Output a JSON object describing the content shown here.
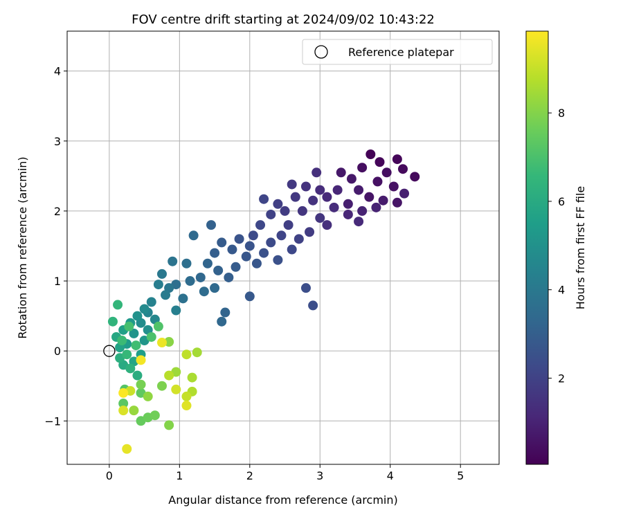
{
  "chart_data": {
    "type": "scatter",
    "title": "FOV centre drift starting at 2024/09/02 10:43:22",
    "xlabel": "Angular distance from reference (arcmin)",
    "ylabel": "Rotation from reference (arcmin)",
    "xlim": [
      -0.6,
      5.55
    ],
    "ylim": [
      -1.62,
      4.57
    ],
    "xticks": [
      0,
      1,
      2,
      3,
      4,
      5
    ],
    "yticks": [
      -1,
      0,
      1,
      2,
      3,
      4
    ],
    "xtick_labels": [
      "0",
      "1",
      "2",
      "3",
      "4",
      "5"
    ],
    "ytick_labels": [
      "−1",
      "0",
      "1",
      "2",
      "3",
      "4"
    ],
    "grid": true,
    "legend": {
      "position": "top-right",
      "entries": [
        "Reference platepar"
      ]
    },
    "reference_point": {
      "name": "Reference platepar",
      "x": 0,
      "y": 0
    },
    "colorbar": {
      "label": "Hours from first FF file",
      "colormap": "viridis",
      "range": [
        0.05,
        9.85
      ],
      "ticks": [
        2,
        4,
        6,
        8
      ],
      "tick_labels": [
        "2",
        "4",
        "6",
        "8"
      ],
      "colors": [
        "#440154",
        "#482878",
        "#3e4989",
        "#31688e",
        "#26828e",
        "#1f9e89",
        "#35b779",
        "#6ece58",
        "#b5de2b",
        "#fde725"
      ]
    },
    "points": [
      {
        "x": 3.72,
        "y": 2.81,
        "t": 0.1
      },
      {
        "x": 3.85,
        "y": 2.7,
        "t": 0.2
      },
      {
        "x": 4.1,
        "y": 2.74,
        "t": 0.2
      },
      {
        "x": 4.35,
        "y": 2.49,
        "t": 0.3
      },
      {
        "x": 4.18,
        "y": 2.6,
        "t": 0.3
      },
      {
        "x": 3.95,
        "y": 2.55,
        "t": 0.4
      },
      {
        "x": 3.6,
        "y": 2.62,
        "t": 0.4
      },
      {
        "x": 3.82,
        "y": 2.42,
        "t": 0.5
      },
      {
        "x": 4.05,
        "y": 2.35,
        "t": 0.5
      },
      {
        "x": 3.7,
        "y": 2.2,
        "t": 0.6
      },
      {
        "x": 4.1,
        "y": 2.12,
        "t": 0.6
      },
      {
        "x": 3.45,
        "y": 2.46,
        "t": 0.7
      },
      {
        "x": 3.3,
        "y": 2.55,
        "t": 0.7
      },
      {
        "x": 3.55,
        "y": 2.3,
        "t": 0.8
      },
      {
        "x": 3.9,
        "y": 2.15,
        "t": 0.8
      },
      {
        "x": 4.2,
        "y": 2.25,
        "t": 0.9
      },
      {
        "x": 3.4,
        "y": 2.1,
        "t": 0.9
      },
      {
        "x": 3.6,
        "y": 2.0,
        "t": 1.0
      },
      {
        "x": 3.8,
        "y": 2.05,
        "t": 1.0
      },
      {
        "x": 3.25,
        "y": 2.3,
        "t": 1.1
      },
      {
        "x": 3.4,
        "y": 1.95,
        "t": 1.1
      },
      {
        "x": 3.1,
        "y": 2.2,
        "t": 1.2
      },
      {
        "x": 3.55,
        "y": 1.85,
        "t": 1.2
      },
      {
        "x": 3.2,
        "y": 2.05,
        "t": 1.3
      },
      {
        "x": 3.0,
        "y": 2.3,
        "t": 1.3
      },
      {
        "x": 3.1,
        "y": 1.8,
        "t": 1.4
      },
      {
        "x": 2.95,
        "y": 2.55,
        "t": 1.4
      },
      {
        "x": 2.9,
        "y": 2.15,
        "t": 1.5
      },
      {
        "x": 2.8,
        "y": 2.35,
        "t": 1.5
      },
      {
        "x": 2.75,
        "y": 2.0,
        "t": 1.6
      },
      {
        "x": 3.0,
        "y": 1.9,
        "t": 1.6
      },
      {
        "x": 2.65,
        "y": 2.2,
        "t": 1.7
      },
      {
        "x": 2.6,
        "y": 2.38,
        "t": 1.7
      },
      {
        "x": 2.5,
        "y": 2.0,
        "t": 1.8
      },
      {
        "x": 2.85,
        "y": 1.7,
        "t": 1.8
      },
      {
        "x": 2.4,
        "y": 2.1,
        "t": 1.9
      },
      {
        "x": 2.55,
        "y": 1.8,
        "t": 1.9
      },
      {
        "x": 2.3,
        "y": 1.95,
        "t": 2.0
      },
      {
        "x": 2.7,
        "y": 1.6,
        "t": 2.0
      },
      {
        "x": 2.2,
        "y": 2.17,
        "t": 2.1
      },
      {
        "x": 2.45,
        "y": 1.65,
        "t": 2.1
      },
      {
        "x": 2.15,
        "y": 1.8,
        "t": 2.2
      },
      {
        "x": 2.6,
        "y": 1.45,
        "t": 2.2
      },
      {
        "x": 2.3,
        "y": 1.55,
        "t": 2.3
      },
      {
        "x": 2.05,
        "y": 1.65,
        "t": 2.3
      },
      {
        "x": 2.9,
        "y": 0.65,
        "t": 2.4
      },
      {
        "x": 2.8,
        "y": 0.9,
        "t": 2.4
      },
      {
        "x": 2.4,
        "y": 1.3,
        "t": 2.5
      },
      {
        "x": 2.2,
        "y": 1.4,
        "t": 2.5
      },
      {
        "x": 2.0,
        "y": 1.5,
        "t": 2.6
      },
      {
        "x": 1.85,
        "y": 1.6,
        "t": 2.6
      },
      {
        "x": 2.1,
        "y": 1.25,
        "t": 2.7
      },
      {
        "x": 1.95,
        "y": 1.35,
        "t": 2.7
      },
      {
        "x": 1.75,
        "y": 1.45,
        "t": 2.8
      },
      {
        "x": 2.0,
        "y": 0.78,
        "t": 2.8
      },
      {
        "x": 1.8,
        "y": 1.2,
        "t": 2.9
      },
      {
        "x": 1.6,
        "y": 1.55,
        "t": 2.9
      },
      {
        "x": 1.7,
        "y": 1.05,
        "t": 3.0
      },
      {
        "x": 1.5,
        "y": 1.4,
        "t": 3.0
      },
      {
        "x": 1.45,
        "y": 1.8,
        "t": 3.1
      },
      {
        "x": 1.55,
        "y": 1.15,
        "t": 3.1
      },
      {
        "x": 1.4,
        "y": 1.25,
        "t": 3.2
      },
      {
        "x": 1.65,
        "y": 0.55,
        "t": 3.2
      },
      {
        "x": 1.6,
        "y": 0.42,
        "t": 3.3
      },
      {
        "x": 1.3,
        "y": 1.05,
        "t": 3.3
      },
      {
        "x": 1.5,
        "y": 0.9,
        "t": 3.4
      },
      {
        "x": 1.2,
        "y": 1.65,
        "t": 3.4
      },
      {
        "x": 1.15,
        "y": 1.0,
        "t": 3.5
      },
      {
        "x": 1.35,
        "y": 0.85,
        "t": 3.5
      },
      {
        "x": 1.1,
        "y": 1.25,
        "t": 3.6
      },
      {
        "x": 0.95,
        "y": 0.95,
        "t": 3.6
      },
      {
        "x": 1.05,
        "y": 0.75,
        "t": 3.7
      },
      {
        "x": 0.9,
        "y": 1.28,
        "t": 3.8
      },
      {
        "x": 0.85,
        "y": 0.9,
        "t": 3.9
      },
      {
        "x": 0.75,
        "y": 1.1,
        "t": 4.0
      },
      {
        "x": 0.8,
        "y": 0.8,
        "t": 4.1
      },
      {
        "x": 0.7,
        "y": 0.95,
        "t": 4.2
      },
      {
        "x": 0.95,
        "y": 0.58,
        "t": 4.3
      },
      {
        "x": 0.6,
        "y": 0.7,
        "t": 4.4
      },
      {
        "x": 0.55,
        "y": 0.55,
        "t": 4.5
      },
      {
        "x": 0.65,
        "y": 0.45,
        "t": 4.6
      },
      {
        "x": 0.5,
        "y": 0.6,
        "t": 4.7
      },
      {
        "x": 0.45,
        "y": 0.4,
        "t": 4.8
      },
      {
        "x": 0.55,
        "y": 0.3,
        "t": 4.9
      },
      {
        "x": 0.4,
        "y": 0.5,
        "t": 5.0
      },
      {
        "x": 0.35,
        "y": 0.25,
        "t": 5.1
      },
      {
        "x": 0.5,
        "y": 0.15,
        "t": 5.2
      },
      {
        "x": 0.3,
        "y": 0.4,
        "t": 5.3
      },
      {
        "x": 0.25,
        "y": 0.1,
        "t": 5.4
      },
      {
        "x": 0.45,
        "y": -0.05,
        "t": 5.5
      },
      {
        "x": 0.2,
        "y": 0.3,
        "t": 5.6
      },
      {
        "x": 0.15,
        "y": 0.05,
        "t": 5.7
      },
      {
        "x": 0.35,
        "y": -0.15,
        "t": 5.8
      },
      {
        "x": 0.1,
        "y": 0.2,
        "t": 5.9
      },
      {
        "x": 0.2,
        "y": -0.2,
        "t": 6.0
      },
      {
        "x": 0.4,
        "y": -0.35,
        "t": 6.1
      },
      {
        "x": 0.15,
        "y": -0.1,
        "t": 6.2
      },
      {
        "x": 0.3,
        "y": -0.25,
        "t": 6.3
      },
      {
        "x": 0.05,
        "y": 0.42,
        "t": 6.4
      },
      {
        "x": 0.12,
        "y": 0.66,
        "t": 6.5
      },
      {
        "x": 0.25,
        "y": -0.05,
        "t": 6.6
      },
      {
        "x": 0.18,
        "y": 0.15,
        "t": 6.7
      },
      {
        "x": 0.38,
        "y": 0.08,
        "t": 6.8
      },
      {
        "x": 0.28,
        "y": 0.35,
        "t": 6.9
      },
      {
        "x": 0.6,
        "y": 0.2,
        "t": 7.0
      },
      {
        "x": 0.7,
        "y": 0.35,
        "t": 7.1
      },
      {
        "x": 0.22,
        "y": -0.55,
        "t": 7.2
      },
      {
        "x": 0.2,
        "y": -0.75,
        "t": 7.3
      },
      {
        "x": 0.45,
        "y": -0.6,
        "t": 7.4
      },
      {
        "x": 0.45,
        "y": -1.0,
        "t": 7.5
      },
      {
        "x": 0.55,
        "y": -0.95,
        "t": 7.6
      },
      {
        "x": 0.65,
        "y": -0.92,
        "t": 7.7
      },
      {
        "x": 0.45,
        "y": -0.48,
        "t": 7.8
      },
      {
        "x": 0.75,
        "y": -0.5,
        "t": 7.9
      },
      {
        "x": 0.85,
        "y": -1.06,
        "t": 8.0
      },
      {
        "x": 0.85,
        "y": 0.13,
        "t": 8.1
      },
      {
        "x": 0.55,
        "y": -0.65,
        "t": 8.2
      },
      {
        "x": 0.35,
        "y": -0.85,
        "t": 8.3
      },
      {
        "x": 0.95,
        "y": -0.3,
        "t": 8.4
      },
      {
        "x": 1.25,
        "y": -0.02,
        "t": 8.5
      },
      {
        "x": 1.18,
        "y": -0.38,
        "t": 8.6
      },
      {
        "x": 1.18,
        "y": -0.58,
        "t": 8.7
      },
      {
        "x": 0.85,
        "y": -0.35,
        "t": 8.8
      },
      {
        "x": 1.1,
        "y": -0.05,
        "t": 8.9
      },
      {
        "x": 1.1,
        "y": -0.65,
        "t": 9.0
      },
      {
        "x": 0.3,
        "y": -0.57,
        "t": 9.1
      },
      {
        "x": 0.95,
        "y": -0.55,
        "t": 9.2
      },
      {
        "x": 0.2,
        "y": -0.85,
        "t": 9.3
      },
      {
        "x": 1.1,
        "y": -0.78,
        "t": 9.4
      },
      {
        "x": 0.25,
        "y": -1.4,
        "t": 9.5
      },
      {
        "x": 0.75,
        "y": 0.12,
        "t": 9.6
      },
      {
        "x": 0.45,
        "y": -0.13,
        "t": 9.7
      },
      {
        "x": 0.2,
        "y": -0.6,
        "t": 9.8
      }
    ]
  }
}
